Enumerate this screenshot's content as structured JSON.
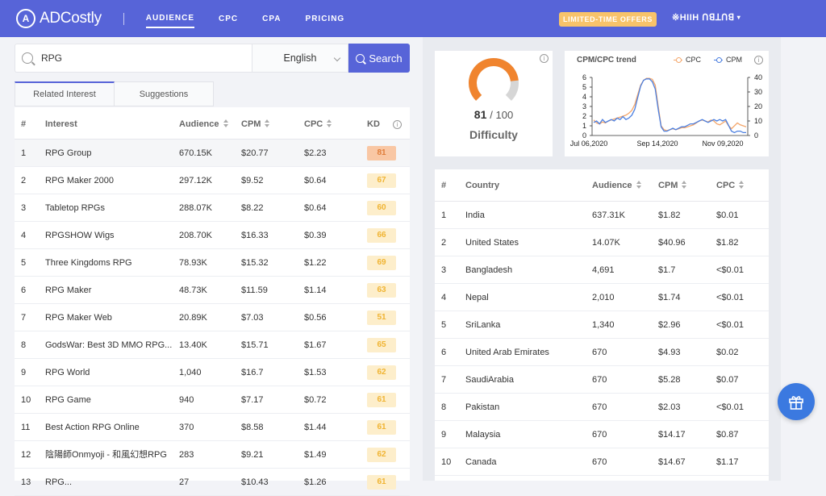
{
  "brand": {
    "name": "ADCostly",
    "mark": "A"
  },
  "nav": {
    "items": [
      "AUDIENCE",
      "CPC",
      "CPA",
      "PRICING"
    ],
    "offer": "LIMITED-TIME OFFERS",
    "user": "※HIIH ꓵꓭꓕꓵꓭ"
  },
  "search": {
    "value": "RPG",
    "language": "English",
    "button": "Search"
  },
  "tabs": [
    "Related Interest",
    "Suggestions"
  ],
  "interest_table": {
    "headers": [
      "#",
      "Interest",
      "Audience",
      "CPM",
      "CPC",
      "KD"
    ],
    "rows": [
      {
        "n": "1",
        "interest": "RPG Group",
        "audience": "670.15K",
        "cpm": "$20.77",
        "cpc": "$2.23",
        "kd": "81"
      },
      {
        "n": "2",
        "interest": "RPG Maker 2000",
        "audience": "297.12K",
        "cpm": "$9.52",
        "cpc": "$0.64",
        "kd": "67"
      },
      {
        "n": "3",
        "interest": "Tabletop RPGs",
        "audience": "288.07K",
        "cpm": "$8.22",
        "cpc": "$0.64",
        "kd": "60"
      },
      {
        "n": "4",
        "interest": "RPGSHOW Wigs",
        "audience": "208.70K",
        "cpm": "$16.33",
        "cpc": "$0.39",
        "kd": "66"
      },
      {
        "n": "5",
        "interest": "Three Kingdoms RPG",
        "audience": "78.93K",
        "cpm": "$15.32",
        "cpc": "$1.22",
        "kd": "69"
      },
      {
        "n": "6",
        "interest": "RPG Maker",
        "audience": "48.73K",
        "cpm": "$11.59",
        "cpc": "$1.14",
        "kd": "63"
      },
      {
        "n": "7",
        "interest": "RPG Maker Web",
        "audience": "20.89K",
        "cpm": "$7.03",
        "cpc": "$0.56",
        "kd": "51"
      },
      {
        "n": "8",
        "interest": "GodsWar: Best 3D MMO RPG...",
        "audience": "13.40K",
        "cpm": "$15.71",
        "cpc": "$1.67",
        "kd": "65"
      },
      {
        "n": "9",
        "interest": "RPG World",
        "audience": "1,040",
        "cpm": "$16.7",
        "cpc": "$1.53",
        "kd": "62"
      },
      {
        "n": "10",
        "interest": "RPG Game",
        "audience": "940",
        "cpm": "$7.17",
        "cpc": "$0.72",
        "kd": "61"
      },
      {
        "n": "11",
        "interest": "Best Action RPG Online",
        "audience": "370",
        "cpm": "$8.58",
        "cpc": "$1.44",
        "kd": "61"
      },
      {
        "n": "12",
        "interest": "陰陽師Onmyoji - 和風幻想RPG",
        "audience": "283",
        "cpm": "$9.21",
        "cpc": "$1.49",
        "kd": "62"
      },
      {
        "n": "13",
        "interest": "RPG...",
        "audience": "27",
        "cpm": "$10.43",
        "cpc": "$1.26",
        "kd": "61"
      }
    ]
  },
  "difficulty": {
    "value": "81",
    "max": "/ 100",
    "label": "Difficulty",
    "fraction": 0.81
  },
  "trend": {
    "title": "CPM/CPC trend",
    "legend": [
      "CPC",
      "CPM"
    ],
    "colors": {
      "cpc": "#f4a66a",
      "cpm": "#4b7fe0"
    }
  },
  "chart_data": {
    "type": "line",
    "title": "CPM/CPC trend",
    "x_ticks": [
      "Jul 06,2020",
      "Sep 14,2020",
      "Nov 09,2020"
    ],
    "y_left_ticks": [
      "0",
      "1",
      "2",
      "3",
      "4",
      "5",
      "6"
    ],
    "y_right_ticks": [
      "0",
      "10",
      "20",
      "30",
      "40"
    ],
    "ylim_left": [
      0,
      6
    ],
    "ylim_right": [
      0,
      40
    ],
    "series": [
      {
        "name": "CPC",
        "axis": "left",
        "values": [
          1.6,
          1.3,
          1.2,
          1.4,
          1.3,
          1.5,
          1.6,
          1.7,
          1.8,
          1.9,
          2.0,
          2.1,
          2.3,
          2.6,
          3.2,
          4.2,
          5.2,
          5.7,
          5.9,
          5.9,
          5.8,
          5.2,
          3.0,
          1.0,
          0.6,
          0.5,
          0.6,
          0.7,
          0.6,
          0.7,
          0.8,
          0.8,
          0.9,
          1.0,
          1.1,
          1.3,
          1.5,
          1.6,
          1.5,
          1.4,
          1.6,
          1.5,
          1.2,
          1.1,
          1.3,
          1.5,
          1.0,
          0.7,
          1.0,
          1.3,
          1.1,
          1.0,
          0.9
        ]
      },
      {
        "name": "CPM",
        "axis": "right",
        "values": [
          9,
          10,
          8,
          11,
          9,
          10,
          11,
          10,
          12,
          11,
          13,
          11,
          12,
          14,
          18,
          26,
          34,
          38,
          39,
          39,
          37,
          32,
          18,
          6,
          3,
          3,
          4,
          5,
          4,
          5,
          6,
          6,
          7,
          8,
          8,
          9,
          10,
          11,
          10,
          9,
          10,
          11,
          10,
          11,
          10,
          11,
          7,
          3,
          2,
          3,
          3,
          2,
          2
        ]
      }
    ]
  },
  "country_table": {
    "headers": [
      "#",
      "Country",
      "Audience",
      "CPM",
      "CPC"
    ],
    "rows": [
      {
        "n": "1",
        "country": "India",
        "audience": "637.31K",
        "cpm": "$1.82",
        "cpc": "$0.01"
      },
      {
        "n": "2",
        "country": "United States",
        "audience": "14.07K",
        "cpm": "$40.96",
        "cpc": "$1.82"
      },
      {
        "n": "3",
        "country": "Bangladesh",
        "audience": "4,691",
        "cpm": "$1.7",
        "cpc": "<$0.01"
      },
      {
        "n": "4",
        "country": "Nepal",
        "audience": "2,010",
        "cpm": "$1.74",
        "cpc": "<$0.01"
      },
      {
        "n": "5",
        "country": "SriLanka",
        "audience": "1,340",
        "cpm": "$2.96",
        "cpc": "<$0.01"
      },
      {
        "n": "6",
        "country": "United Arab Emirates",
        "audience": "670",
        "cpm": "$4.93",
        "cpc": "$0.02"
      },
      {
        "n": "7",
        "country": "SaudiArabia",
        "audience": "670",
        "cpm": "$5.28",
        "cpc": "$0.07"
      },
      {
        "n": "8",
        "country": "Pakistan",
        "audience": "670",
        "cpm": "$2.03",
        "cpc": "<$0.01"
      },
      {
        "n": "9",
        "country": "Malaysia",
        "audience": "670",
        "cpm": "$14.17",
        "cpc": "$0.87"
      },
      {
        "n": "10",
        "country": "Canada",
        "audience": "670",
        "cpm": "$14.67",
        "cpc": "$1.17"
      }
    ]
  }
}
